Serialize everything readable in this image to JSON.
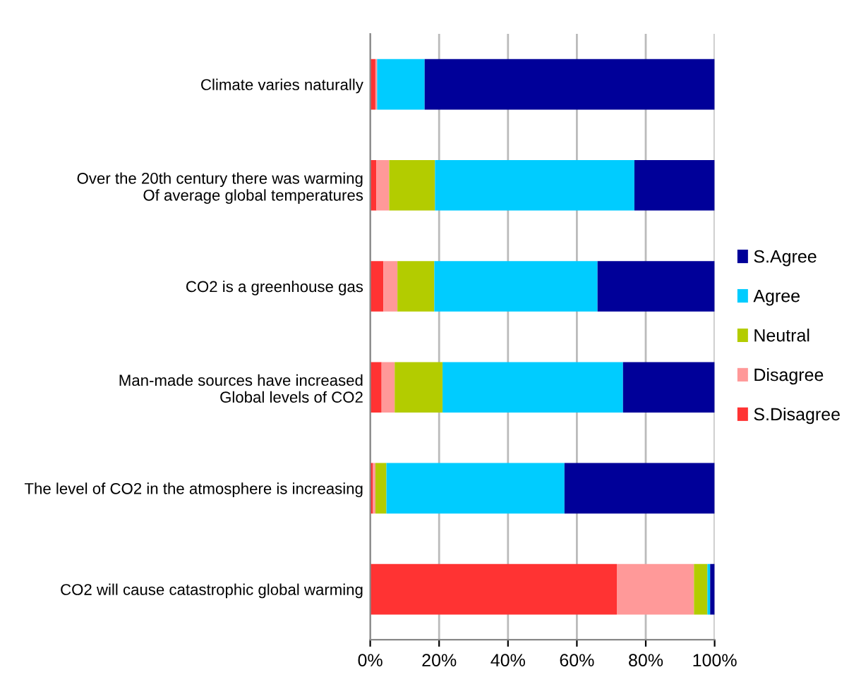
{
  "chart_data": {
    "type": "bar",
    "orientation": "horizontal",
    "stacked": true,
    "categories": [
      "Climate varies naturally",
      "Over the 20th century there was warming\nOf average global temperatures",
      "CO2 is a greenhouse gas",
      "Man-made sources have increased\nGlobal levels of CO2",
      "The level of CO2 in the atmosphere is increasing",
      "CO2 will cause catastrophic global warming"
    ],
    "series": [
      {
        "name": "S.Disagree",
        "color": "#ff3333",
        "values": [
          1.5,
          1.8,
          3.8,
          3.3,
          0.8,
          71.6
        ]
      },
      {
        "name": "Disagree",
        "color": "#ff9999",
        "values": [
          0.5,
          3.7,
          4.1,
          3.8,
          0.7,
          22.4
        ]
      },
      {
        "name": "Neutral",
        "color": "#b3cc00",
        "values": [
          0,
          13.3,
          10.7,
          13.9,
          3.2,
          3.9
        ]
      },
      {
        "name": "Agree",
        "color": "#00ccff",
        "values": [
          13.8,
          57.9,
          47.4,
          52.4,
          51.7,
          0.8
        ]
      },
      {
        "name": "S.Agree",
        "color": "#000099",
        "values": [
          84.2,
          23.3,
          34.0,
          26.6,
          43.6,
          1.3
        ]
      }
    ],
    "xlim": [
      0,
      100
    ],
    "xticks": [
      {
        "value": 0,
        "label": "0%"
      },
      {
        "value": 20,
        "label": "20%"
      },
      {
        "value": 40,
        "label": "40%"
      },
      {
        "value": 60,
        "label": "60%"
      },
      {
        "value": 80,
        "label": "80%"
      },
      {
        "value": 100,
        "label": "100%"
      }
    ],
    "grid": "x",
    "legend": "right"
  }
}
